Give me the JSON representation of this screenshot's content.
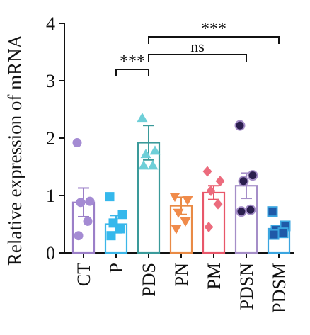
{
  "chart_data": {
    "type": "bar",
    "ylabel": "Relative expression of mRNA",
    "xlabel": "",
    "ylim": [
      0,
      4
    ],
    "yticks": [
      0,
      1,
      2,
      3,
      4
    ],
    "grid": false,
    "categories": [
      "CT",
      "P",
      "PDS",
      "PN",
      "PM",
      "PDSN",
      "PDSM"
    ],
    "values": [
      0.88,
      0.5,
      1.92,
      0.82,
      1.05,
      1.17,
      0.42
    ],
    "errors": [
      0.25,
      0.15,
      0.3,
      0.15,
      0.12,
      0.22,
      0.04
    ],
    "points": [
      [
        1.92,
        0.9,
        0.88,
        0.55,
        0.3
      ],
      [
        0.98,
        0.67,
        0.52,
        0.42,
        0.3
      ],
      [
        2.35,
        1.78,
        1.72,
        1.52,
        1.52
      ],
      [
        0.98,
        0.92,
        0.7,
        0.55,
        0.42
      ],
      [
        1.42,
        1.25,
        1.08,
        0.85,
        0.45
      ],
      [
        2.22,
        1.35,
        1.25,
        0.75,
        0.72
      ],
      [
        0.72,
        0.47,
        0.4,
        0.35,
        0.32
      ]
    ],
    "colors": [
      "#9b7fc8",
      "#3bb6e8",
      "#3a9a9a",
      "#e98a45",
      "#e8576a",
      "#a58ec8",
      "#3aa5e0"
    ],
    "markerColors": [
      "#a48bd3",
      "#35b8ec",
      "#6ecfd8",
      "#f08b4b",
      "#ec6b7d",
      "#2b1f4e",
      "#1f59a8"
    ],
    "markers": [
      "circle",
      "square",
      "triangle-up",
      "triangle-down",
      "diamond",
      "circle",
      "square"
    ],
    "significance": [
      {
        "from": "P",
        "to": "PDS",
        "label": "***"
      },
      {
        "from": "PDS",
        "to": "PDSN",
        "label": "ns"
      },
      {
        "from": "PDS",
        "to": "PDSM",
        "label": "***"
      }
    ]
  }
}
